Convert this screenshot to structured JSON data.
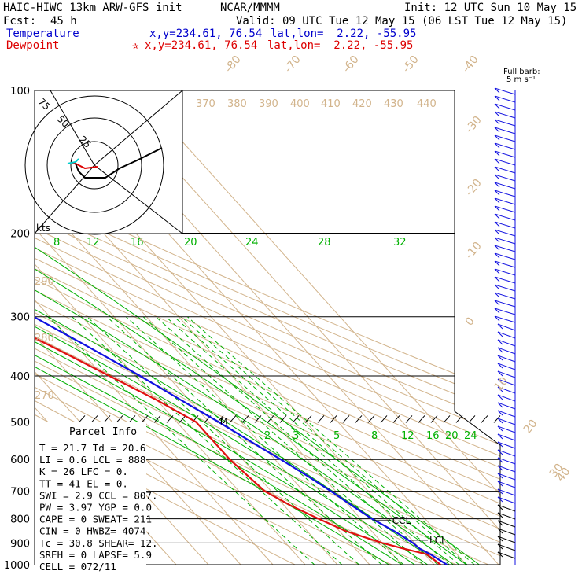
{
  "header": {
    "model": "HAIC-HIWC 13km ARW-GFS init",
    "org": "NCAR/MMMM",
    "init": "Init: 12 UTC Sun 10 May 15",
    "fcst_label": "Fcst:",
    "fcst_value": "45 h",
    "valid": "Valid: 09 UTC Tue 12 May 15 (06 LST Tue 12 May 15)",
    "temp_label": "Temperature",
    "temp_xy": "x,y=234.61, 76.54",
    "temp_latlon": "lat,lon=  2.22, -55.95",
    "dew_label": "Dewpoint",
    "dew_marker": "✰",
    "dew_xy": "x,y=234.61, 76.54",
    "dew_latlon": "lat,lon=  2.22, -55.95"
  },
  "colors": {
    "temperature": "#1010e0",
    "dewpoint": "#e01010",
    "tan": "#d2b48c",
    "green": "#00b000",
    "text_blue": "#0000cc",
    "text_red": "#dd0000"
  },
  "chart_data": {
    "type": "line",
    "title": "",
    "pressure_ticks": [
      "100",
      "200",
      "300",
      "400",
      "500",
      "600",
      "700",
      "800",
      "900",
      "1000"
    ],
    "isotherm_labels": [
      "-80",
      "-70",
      "-60",
      "-50",
      "-40",
      "-30",
      "-20",
      "-10",
      "0",
      "10",
      "20",
      "30",
      "40"
    ],
    "theta_labels": [
      "370",
      "380",
      "390",
      "400",
      "410",
      "420",
      "430",
      "440",
      "290",
      "280",
      "270"
    ],
    "mixing_ratio_labels_upper": [
      "8",
      "12",
      "16",
      "20",
      "24",
      "28",
      "32"
    ],
    "mixing_ratio_labels_lower": [
      "2",
      "3",
      "5",
      "8",
      "12",
      "16",
      "20",
      "24"
    ],
    "pressure_levels": [
      1000,
      950,
      925,
      900,
      850,
      800,
      750,
      700,
      650,
      600,
      550,
      500,
      450,
      400,
      350,
      300,
      250,
      200,
      150,
      100
    ],
    "series": [
      {
        "name": "Temperature",
        "values": [
          24.0,
          21.7,
          20.0,
          19.5,
          17.0,
          13.5,
          11.0,
          8.5,
          5.5,
          1.8,
          -2.5,
          -7.0,
          -12.5,
          -18.5,
          -26.0,
          -35.0,
          -44.0,
          -54.0,
          -67.0,
          -78.0
        ]
      },
      {
        "name": "Dewpoint",
        "values": [
          22.0,
          20.6,
          15.0,
          10.0,
          2.0,
          -3.0,
          -8.0,
          -12.0,
          -13.0,
          -14.0,
          -14.0,
          -14.0,
          -20.0,
          -28.0,
          -37.0,
          -48.0,
          -57.0,
          -65.0,
          -86.0,
          -92.0
        ]
      }
    ],
    "annotations": [
      "CCL",
      "LCL",
      "M"
    ],
    "barb_legend": "Full barb:\n5 m s⁻¹"
  },
  "hodograph": {
    "unit_label": "kts",
    "ring_labels": [
      "75",
      "50",
      "25"
    ]
  },
  "parcel_info": {
    "title": "Parcel Info",
    "rows": [
      "T  =    21.7  Td =  20.6",
      "LI =     0.6  LCL =  888.",
      "K  =     26   LFC =    0.",
      "TT =     41   EL  =    0.",
      "SWI =    2.9  CCL =  807.",
      "PW =   3.97  YGP =   0.0",
      "CAPE =     0  SWEAT=  211",
      "CIN  =     0  HWBZ= 4074.",
      "Tc =   30.8  SHEAR=   12.",
      "SREH =     0  LAPSE=   5.9",
      "CELL = 072/11"
    ]
  }
}
